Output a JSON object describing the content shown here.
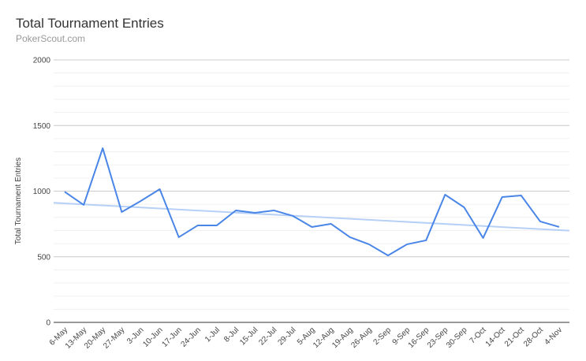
{
  "chart_data": {
    "type": "line",
    "title": "Total Tournament Entries",
    "subtitle": "PokerScout.com",
    "y_label": "Total Tournament Entries",
    "categories": [
      "6-May",
      "13-May",
      "20-May",
      "27-May",
      "3-Jun",
      "10-Jun",
      "17-Jun",
      "24-Jun",
      "1-Jul",
      "8-Jul",
      "15-Jul",
      "22-Jul",
      "29-Jul",
      "5-Aug",
      "12-Aug",
      "19-Aug",
      "26-Aug",
      "2-Sep",
      "9-Sep",
      "16-Sep",
      "23-Sep",
      "30-Sep",
      "7-Oct",
      "14-Oct",
      "21-Oct",
      "28-Oct",
      "4-Nov"
    ],
    "series": [
      {
        "name": "Total Tournament Entries",
        "color": "#4a86e8",
        "values": [
          995,
          895,
          1327,
          841,
          925,
          1015,
          649,
          739,
          739,
          853,
          835,
          853,
          811,
          727,
          751,
          649,
          595,
          510,
          595,
          625,
          973,
          877,
          643,
          955,
          967,
          769,
          727
        ]
      }
    ],
    "trendline": {
      "color": "#b6d0f6",
      "values": [
        907,
        703
      ]
    },
    "ylim": [
      0,
      2000
    ],
    "yticks": [
      0,
      500,
      1000,
      1500,
      2000
    ],
    "minor_grid_step": 100,
    "grid": true
  }
}
